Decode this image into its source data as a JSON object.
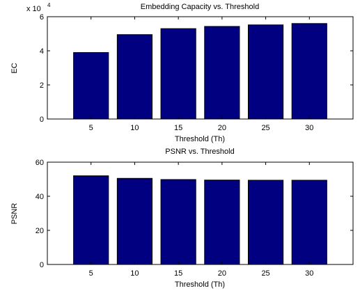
{
  "chart_data": [
    {
      "type": "bar",
      "title": "Embedding Capacity vs. Threshold",
      "xlabel": "Threshold (Th)",
      "ylabel": "EC",
      "y_scale_label": "x 10",
      "y_scale_exponent": "4",
      "categories": [
        "5",
        "10",
        "15",
        "20",
        "25",
        "30"
      ],
      "values": [
        39000,
        49500,
        53000,
        54300,
        55200,
        56000
      ],
      "ylim": [
        0,
        60000
      ],
      "yticks": [
        0,
        20000,
        40000,
        60000
      ],
      "ytick_labels": [
        "0",
        "2",
        "4",
        "6"
      ],
      "bar_color": "#000080",
      "grid": false
    },
    {
      "type": "bar",
      "title": "PSNR vs. Threshold",
      "xlabel": "Threshold (Th)",
      "ylabel": "PSNR",
      "categories": [
        "5",
        "10",
        "15",
        "20",
        "25",
        "30"
      ],
      "values": [
        52,
        50.5,
        49.8,
        49.5,
        49.4,
        49.4
      ],
      "ylim": [
        0,
        60
      ],
      "yticks": [
        0,
        20,
        40,
        60
      ],
      "ytick_labels": [
        "0",
        "20",
        "40",
        "60"
      ],
      "bar_color": "#000080",
      "grid": false
    }
  ]
}
